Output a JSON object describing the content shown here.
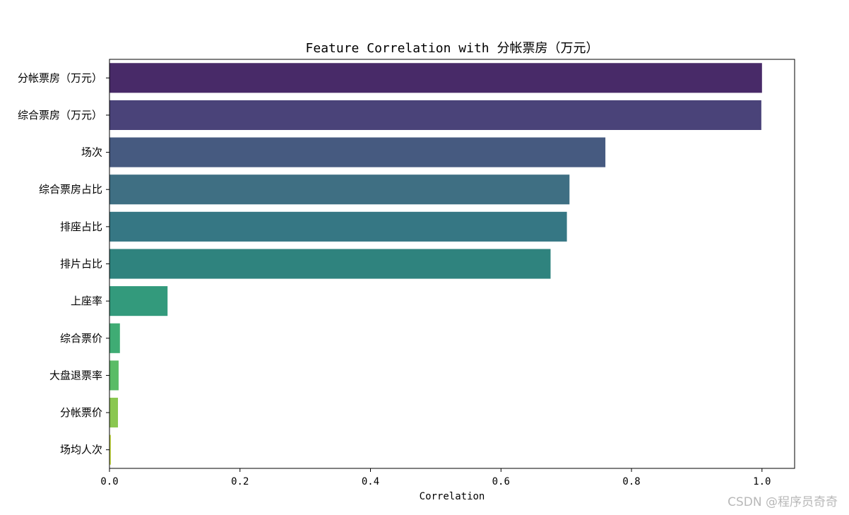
{
  "chart_data": {
    "type": "bar",
    "orientation": "horizontal",
    "title": "Feature Correlation with 分帐票房（万元）",
    "xlabel": "Correlation",
    "ylabel": "",
    "xlim": [
      0.0,
      1.05
    ],
    "xticks": [
      "0.0",
      "0.2",
      "0.4",
      "0.6",
      "0.8",
      "1.0"
    ],
    "grid": false,
    "colormap": "viridis",
    "categories": [
      "分帐票房（万元）",
      "综合票房（万元）",
      "场次",
      "综合票房占比",
      "排座占比",
      "排片占比",
      "上座率",
      "综合票价",
      "大盘退票率",
      "分帐票价",
      "场均人次"
    ],
    "values": [
      1.0,
      0.999,
      0.76,
      0.705,
      0.701,
      0.676,
      0.089,
      0.016,
      0.014,
      0.013,
      0.002
    ],
    "colors": [
      "#482a68",
      "#4a4379",
      "#465a80",
      "#3f6f83",
      "#367784",
      "#2f837e",
      "#339a7c",
      "#3fac74",
      "#5abc66",
      "#8ac750",
      "#c1d62e"
    ]
  },
  "watermark": "CSDN @程序员奇奇"
}
